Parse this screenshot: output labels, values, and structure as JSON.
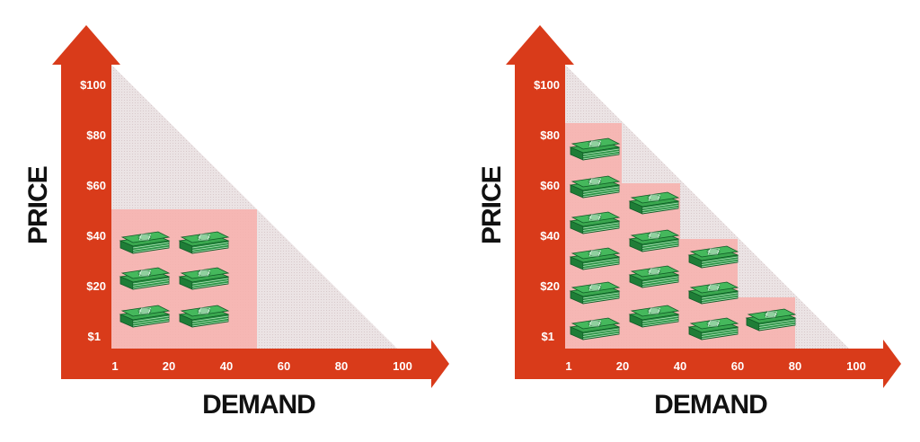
{
  "colors": {
    "axis": "#d93b1a",
    "triangle": "#e9dedf",
    "revenue_area": "#f7b1ad",
    "bill_green": "#2f9e49",
    "bill_dark": "#0f5a26"
  },
  "icons": {
    "money": "money-stack-icon"
  },
  "panels": [
    {
      "y_title": "PRICE",
      "x_title": "DEMAND",
      "y_ticks": [
        "$100",
        "$80",
        "$60",
        "$40",
        "$20",
        "$1"
      ],
      "x_ticks": [
        "1",
        "20",
        "40",
        "60",
        "80",
        "100"
      ],
      "revenue": [
        {
          "demand": 50,
          "price": 50,
          "stacks": 6
        }
      ]
    },
    {
      "y_title": "PRICE",
      "x_title": "DEMAND",
      "y_ticks": [
        "$100",
        "$80",
        "$60",
        "$40",
        "$20",
        "$1"
      ],
      "x_ticks": [
        "1",
        "20",
        "40",
        "60",
        "80",
        "100"
      ],
      "revenue": [
        {
          "demand_from": 1,
          "demand_to": 20,
          "price": 85,
          "stacks": 6
        },
        {
          "demand_from": 20,
          "demand_to": 40,
          "price": 65,
          "stacks": 4
        },
        {
          "demand_from": 40,
          "demand_to": 60,
          "price": 45,
          "stacks": 3
        },
        {
          "demand_from": 60,
          "demand_to": 80,
          "price": 20,
          "stacks": 1
        }
      ]
    }
  ]
}
